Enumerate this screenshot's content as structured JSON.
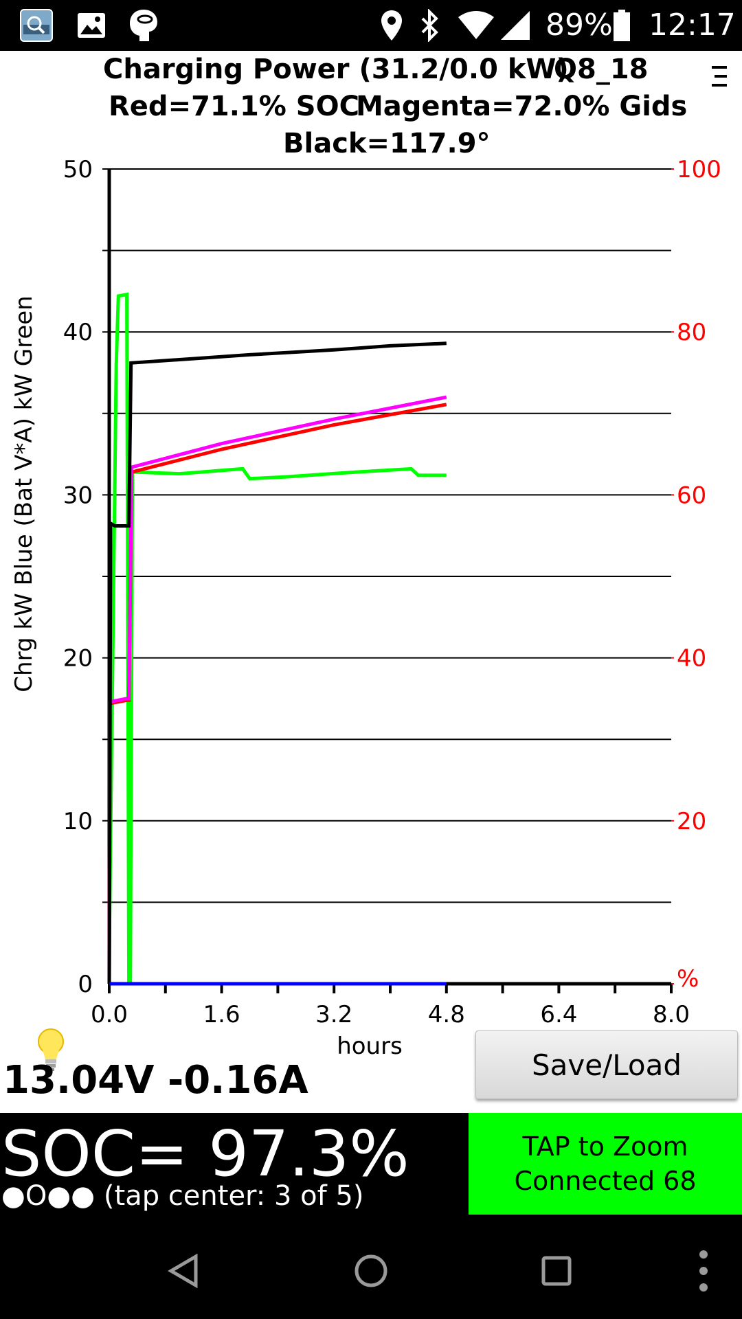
{
  "status_bar": {
    "left_icons": [
      "app-notification-icon",
      "gallery-icon",
      "leafspy-icon"
    ],
    "right_icons": [
      "location-icon",
      "bluetooth-icon",
      "wifi-icon",
      "cell-signal-icon",
      "battery-icon"
    ],
    "battery_percent": "89%",
    "time": "12:17"
  },
  "header": {
    "title": "Charging Power (31.2/0.0 kW)",
    "car_id": "Q8_18",
    "line2_red": "Red=71.1% SOC",
    "line2_magenta": "Magenta=72.0% Gids",
    "line3": "Black=117.9°"
  },
  "chart_data": {
    "type": "line",
    "xlabel": "hours",
    "ylabel": "Chrg kW Blue  (Bat V*A) kW Green",
    "x_ticks": [
      "0.0",
      "1.6",
      "3.2",
      "4.8",
      "6.4",
      "8.0"
    ],
    "xlim": [
      0,
      8
    ],
    "y_ticks": [
      "0",
      "10",
      "20",
      "30",
      "40",
      "50"
    ],
    "ylim": [
      0,
      50
    ],
    "y2_ticks": [
      "%",
      "20",
      "40",
      "60",
      "80",
      "100"
    ],
    "y2lim": [
      0,
      100
    ],
    "grid": true,
    "series": [
      {
        "color": "#00ff00",
        "axis": "left",
        "points": [
          [
            0,
            2.2
          ],
          [
            0.1,
            38
          ],
          [
            0.13,
            42.2
          ],
          [
            0.25,
            42.3
          ],
          [
            0.28,
            0
          ],
          [
            0.3,
            0
          ],
          [
            0.33,
            31.4
          ],
          [
            0.4,
            31.4
          ],
          [
            1.0,
            31.3
          ],
          [
            1.9,
            31.6
          ],
          [
            2.0,
            31.0
          ],
          [
            2.5,
            31.1
          ],
          [
            3.5,
            31.4
          ],
          [
            4.3,
            31.6
          ],
          [
            4.4,
            31.2
          ],
          [
            4.8,
            31.2
          ]
        ]
      },
      {
        "color": "#ff0000",
        "axis": "right",
        "points": [
          [
            0,
            0
          ],
          [
            0.01,
            34.4
          ],
          [
            0.25,
            34.8
          ],
          [
            0.28,
            34.8
          ],
          [
            0.32,
            62.8
          ],
          [
            1.6,
            65.6
          ],
          [
            3.2,
            68.6
          ],
          [
            4.8,
            71.1
          ]
        ]
      },
      {
        "color": "#ff00ff",
        "axis": "right",
        "points": [
          [
            0,
            0
          ],
          [
            0.01,
            34.6
          ],
          [
            0.25,
            35.0
          ],
          [
            0.28,
            35.0
          ],
          [
            0.32,
            63.4
          ],
          [
            1.6,
            66.3
          ],
          [
            3.2,
            69.3
          ],
          [
            4.8,
            72.0
          ]
        ]
      },
      {
        "color": "#000000",
        "axis": "right",
        "points": [
          [
            0,
            0
          ],
          [
            0.02,
            56.5
          ],
          [
            0.08,
            56.2
          ],
          [
            0.25,
            56.2
          ],
          [
            0.28,
            56.2
          ],
          [
            0.31,
            76.2
          ],
          [
            1.0,
            76.6
          ],
          [
            2.0,
            77.2
          ],
          [
            3.2,
            77.8
          ],
          [
            4.0,
            78.3
          ],
          [
            4.8,
            78.6
          ]
        ]
      },
      {
        "color": "#0000ff",
        "axis": "left",
        "points": [
          [
            0,
            0
          ],
          [
            4.8,
            0
          ]
        ]
      }
    ]
  },
  "readout": {
    "voltage_current": "13.04V -0.16A"
  },
  "save_load_label": "Save/Load",
  "soc": {
    "value_text": "SOC= 97.3%",
    "tap_center": "●O●● (tap center: 3 of 5)"
  },
  "zoom_box": {
    "line1": "TAP to Zoom",
    "line2": "Connected 68",
    "color": "#00ff00"
  },
  "nav": [
    "back-icon",
    "home-icon",
    "recents-icon",
    "overflow-icon"
  ]
}
